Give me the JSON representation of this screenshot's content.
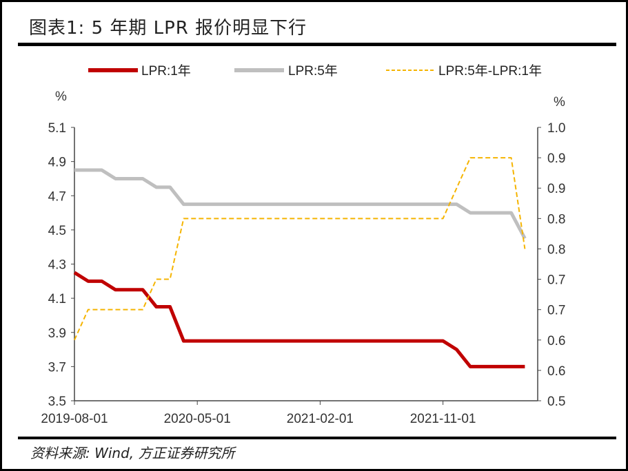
{
  "title": "图表1: 5 年期 LPR 报价明显下行",
  "source": "资料来源: Wind, 方正证券研究所",
  "chart_data": {
    "type": "line",
    "title": "图表1: 5 年期 LPR 报价明显下行",
    "left_unit": "%",
    "right_unit": "%",
    "ylim_left": [
      3.5,
      5.1
    ],
    "yticks_left": [
      "3.5",
      "3.7",
      "3.9",
      "4.1",
      "4.3",
      "4.5",
      "4.7",
      "4.9",
      "5.1"
    ],
    "ylim_right": [
      0.5,
      0.95
    ],
    "yticks_right": [
      "0.5",
      "0.6",
      "0.6",
      "0.7",
      "0.7",
      "0.8",
      "0.8",
      "0.9",
      "0.9",
      "1.0"
    ],
    "xtick_labels": [
      "2019-08-01",
      "2020-05-01",
      "2021-02-01",
      "2021-11-01"
    ],
    "xtick_index": [
      0,
      9,
      18,
      27
    ],
    "legend_position": "top",
    "series": [
      {
        "name": "LPR:1年",
        "axis": "left",
        "color": "#c00000",
        "style": "solid",
        "values": [
          4.25,
          4.2,
          4.2,
          4.15,
          4.15,
          4.15,
          4.05,
          4.05,
          3.85,
          3.85,
          3.85,
          3.85,
          3.85,
          3.85,
          3.85,
          3.85,
          3.85,
          3.85,
          3.85,
          3.85,
          3.85,
          3.85,
          3.85,
          3.85,
          3.85,
          3.85,
          3.85,
          3.85,
          3.8,
          3.7,
          3.7,
          3.7,
          3.7,
          3.7
        ]
      },
      {
        "name": "LPR:5年",
        "axis": "left",
        "color": "#bfbfbf",
        "style": "solid",
        "values": [
          4.85,
          4.85,
          4.85,
          4.8,
          4.8,
          4.8,
          4.75,
          4.75,
          4.65,
          4.65,
          4.65,
          4.65,
          4.65,
          4.65,
          4.65,
          4.65,
          4.65,
          4.65,
          4.65,
          4.65,
          4.65,
          4.65,
          4.65,
          4.65,
          4.65,
          4.65,
          4.65,
          4.65,
          4.65,
          4.6,
          4.6,
          4.6,
          4.6,
          4.45
        ]
      },
      {
        "name": "LPR:5年-LPR:1年",
        "axis": "right",
        "color": "#f5b400",
        "style": "dashed",
        "values": [
          0.6,
          0.65,
          0.65,
          0.65,
          0.65,
          0.65,
          0.7,
          0.7,
          0.8,
          0.8,
          0.8,
          0.8,
          0.8,
          0.8,
          0.8,
          0.8,
          0.8,
          0.8,
          0.8,
          0.8,
          0.8,
          0.8,
          0.8,
          0.8,
          0.8,
          0.8,
          0.8,
          0.8,
          0.85,
          0.9,
          0.9,
          0.9,
          0.9,
          0.75
        ]
      }
    ]
  }
}
